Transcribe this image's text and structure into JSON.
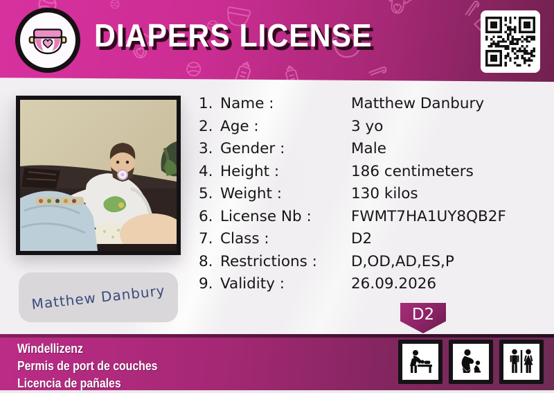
{
  "header": {
    "title": "DIAPERS LICENSE"
  },
  "icons": {
    "logo": "diaper-icon",
    "qr": "qr-code",
    "pictograms": [
      "baby-changing-icon",
      "parent-child-icon",
      "restroom-icon"
    ]
  },
  "fields": [
    {
      "num": "1.",
      "label": "Name :",
      "value": "Matthew Danbury"
    },
    {
      "num": "2.",
      "label": "Age :",
      "value": "3 yo"
    },
    {
      "num": "3.",
      "label": "Gender :",
      "value": "Male"
    },
    {
      "num": "4.",
      "label": "Height :",
      "value": "186 centimeters"
    },
    {
      "num": "5.",
      "label": "Weight :",
      "value": "130 kilos"
    },
    {
      "num": "6.",
      "label": "License Nb :",
      "value": "FWMT7HA1UY8QB2F"
    },
    {
      "num": "7.",
      "label": "Class :",
      "value": "D2"
    },
    {
      "num": "8.",
      "label": "Restrictions :",
      "value": "D,OD,AD,ES,P"
    },
    {
      "num": "9.",
      "label": "Validity :",
      "value": "26.09.2026"
    }
  ],
  "signature": "Matthew Danbury",
  "class_badge": "D2",
  "footer": {
    "lines": [
      "Windellizenz",
      "Permis de port de couches",
      "Licencia de pañales"
    ]
  },
  "colors": {
    "banner_magenta": "#d8319f",
    "banner_dark": "#71214f",
    "footer_left": "#bb2c87",
    "footer_right": "#6e2c55",
    "badge": "#8b2365",
    "signature_ink": "#3c4a7d",
    "body_bg": "#f1eff1"
  }
}
